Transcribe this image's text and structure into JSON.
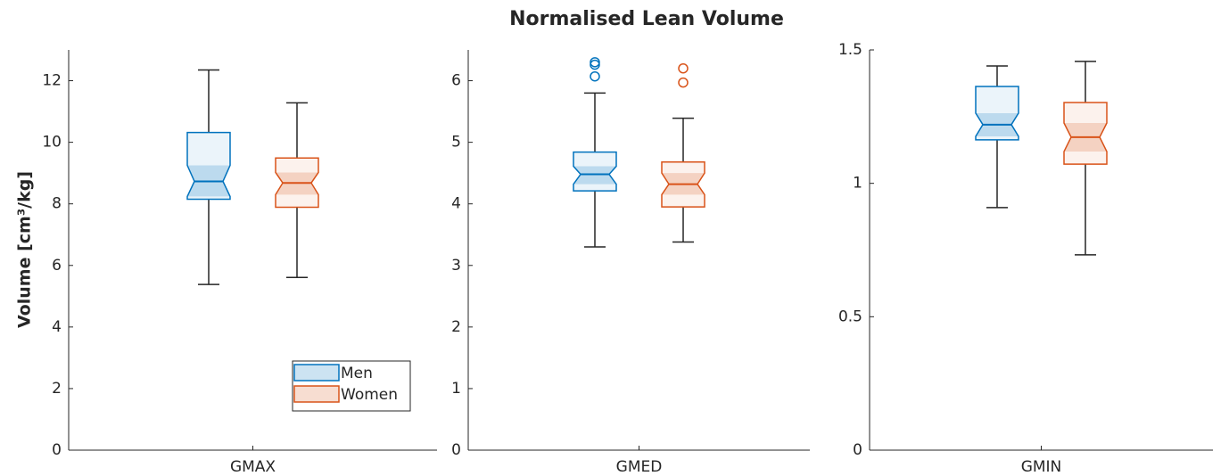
{
  "title": "Normalised Lean Volume",
  "chart_data": [
    {
      "type": "box",
      "ylabel": "Volume [cm³/kg]",
      "categories": [
        "GMAX"
      ],
      "ylim": [
        0,
        13
      ],
      "yticks": [
        0,
        2,
        4,
        6,
        8,
        10,
        12
      ],
      "legend": "lower right",
      "notched": true,
      "series": [
        {
          "name": "Men",
          "color": "#0072bd",
          "boxes": [
            {
              "whislo": 5.38,
              "q1": 8.15,
              "notch_lo": 8.24,
              "med": 8.73,
              "notch_hi": 9.25,
              "q3": 10.32,
              "whishi": 12.35,
              "outliers": []
            }
          ]
        },
        {
          "name": "Women",
          "color": "#d95319",
          "boxes": [
            {
              "whislo": 5.61,
              "q1": 7.89,
              "notch_lo": 8.3,
              "med": 8.68,
              "notch_hi": 9.02,
              "q3": 9.49,
              "whishi": 11.28,
              "outliers": []
            }
          ]
        }
      ]
    },
    {
      "type": "box",
      "categories": [
        "GMED"
      ],
      "ylim": [
        0,
        6.5
      ],
      "yticks": [
        0,
        1,
        2,
        3,
        4,
        5,
        6
      ],
      "notched": true,
      "series": [
        {
          "name": "Men",
          "color": "#0072bd",
          "boxes": [
            {
              "whislo": 3.3,
              "q1": 4.21,
              "notch_lo": 4.32,
              "med": 4.48,
              "notch_hi": 4.61,
              "q3": 4.84,
              "whishi": 5.8,
              "outliers": [
                6.3,
                6.26,
                6.07
              ]
            }
          ]
        },
        {
          "name": "Women",
          "color": "#d95319",
          "boxes": [
            {
              "whislo": 3.38,
              "q1": 3.95,
              "notch_lo": 4.15,
              "med": 4.32,
              "notch_hi": 4.5,
              "q3": 4.68,
              "whishi": 5.39,
              "outliers": [
                6.2,
                5.97
              ]
            }
          ]
        }
      ]
    },
    {
      "type": "box",
      "categories": [
        "GMIN"
      ],
      "ylim": [
        0,
        1.5
      ],
      "yticks": [
        0,
        0.5,
        1,
        1.5
      ],
      "notched": true,
      "series": [
        {
          "name": "Men",
          "color": "#0072bd",
          "boxes": [
            {
              "whislo": 0.909,
              "q1": 1.163,
              "notch_lo": 1.176,
              "med": 1.22,
              "notch_hi": 1.263,
              "q3": 1.363,
              "whishi": 1.44,
              "outliers": []
            }
          ]
        },
        {
          "name": "Women",
          "color": "#d95319",
          "boxes": [
            {
              "whislo": 0.732,
              "q1": 1.072,
              "notch_lo": 1.119,
              "med": 1.173,
              "notch_hi": 1.226,
              "q3": 1.303,
              "whishi": 1.457,
              "outliers": []
            }
          ]
        }
      ]
    }
  ]
}
